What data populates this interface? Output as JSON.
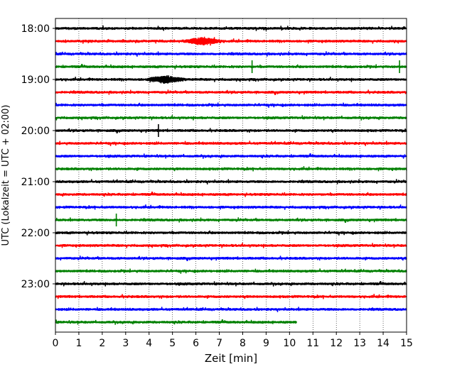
{
  "chart_data": {
    "type": "line",
    "title": "",
    "xlabel": "Zeit  [min]",
    "ylabel": "UTC (Lokalzeit = UTC + 02:00)",
    "xlim": [
      0,
      15
    ],
    "x_ticks": [
      "0",
      "1",
      "2",
      "3",
      "4",
      "5",
      "6",
      "7",
      "8",
      "9",
      "10",
      "11",
      "12",
      "13",
      "14",
      "15"
    ],
    "y_ticks": [
      "18:00",
      "19:00",
      "20:00",
      "21:00",
      "22:00",
      "23:00"
    ],
    "grid": "vertical dotted at each minute",
    "trace_interval_min": 15,
    "start_utc": "18:00",
    "colors_cycle": [
      "#000000",
      "#ff0000",
      "#0000ff",
      "#008000"
    ],
    "traces": [
      {
        "start": "18:00",
        "end_min": 15,
        "color": "#000000"
      },
      {
        "start": "18:15",
        "end_min": 15,
        "color": "#ff0000",
        "event_min": 6.3
      },
      {
        "start": "18:30",
        "end_min": 15,
        "color": "#0000ff"
      },
      {
        "start": "18:45",
        "end_min": 15,
        "color": "#008000",
        "spikes_min": [
          8.4,
          14.7
        ]
      },
      {
        "start": "19:00",
        "end_min": 15,
        "color": "#000000",
        "event_min": 4.7
      },
      {
        "start": "19:15",
        "end_min": 15,
        "color": "#ff0000"
      },
      {
        "start": "19:30",
        "end_min": 15,
        "color": "#0000ff"
      },
      {
        "start": "19:45",
        "end_min": 15,
        "color": "#008000"
      },
      {
        "start": "20:00",
        "end_min": 15,
        "color": "#000000",
        "spikes_min": [
          4.4
        ]
      },
      {
        "start": "20:15",
        "end_min": 15,
        "color": "#ff0000"
      },
      {
        "start": "20:30",
        "end_min": 15,
        "color": "#0000ff"
      },
      {
        "start": "20:45",
        "end_min": 15,
        "color": "#008000"
      },
      {
        "start": "21:00",
        "end_min": 15,
        "color": "#000000"
      },
      {
        "start": "21:15",
        "end_min": 15,
        "color": "#ff0000"
      },
      {
        "start": "21:30",
        "end_min": 15,
        "color": "#0000ff"
      },
      {
        "start": "21:45",
        "end_min": 15,
        "color": "#008000",
        "spikes_min": [
          2.6
        ]
      },
      {
        "start": "22:00",
        "end_min": 15,
        "color": "#000000"
      },
      {
        "start": "22:15",
        "end_min": 15,
        "color": "#ff0000"
      },
      {
        "start": "22:30",
        "end_min": 15,
        "color": "#0000ff"
      },
      {
        "start": "22:45",
        "end_min": 15,
        "color": "#008000"
      },
      {
        "start": "23:00",
        "end_min": 15,
        "color": "#000000"
      },
      {
        "start": "23:15",
        "end_min": 15,
        "color": "#ff0000"
      },
      {
        "start": "23:30",
        "end_min": 15,
        "color": "#0000ff"
      },
      {
        "start": "23:45",
        "end_min": 10.3,
        "color": "#008000"
      }
    ]
  }
}
